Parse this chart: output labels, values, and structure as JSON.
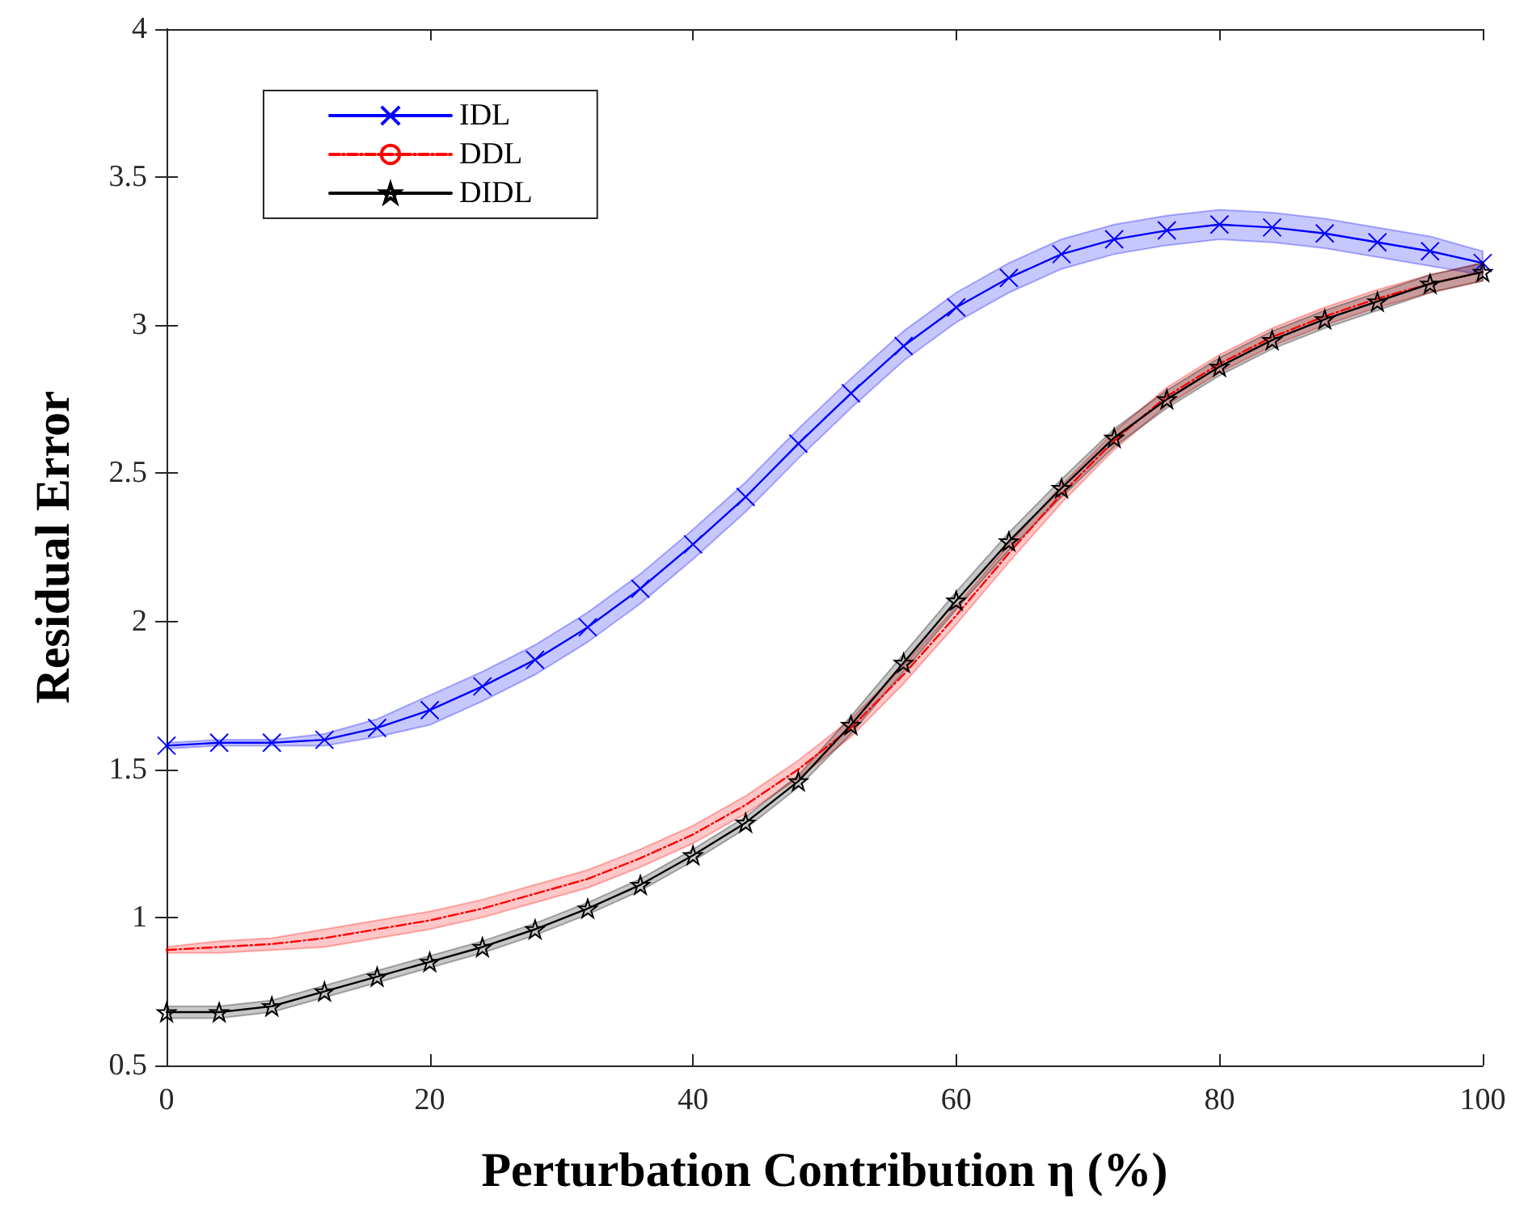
{
  "chart_data": {
    "type": "line",
    "xlabel": "Perturbation Contribution η (%)",
    "ylabel": "Residual Error",
    "x": [
      0,
      4,
      8,
      12,
      16,
      20,
      24,
      28,
      32,
      36,
      40,
      44,
      48,
      52,
      56,
      60,
      64,
      68,
      72,
      76,
      80,
      84,
      88,
      92,
      96,
      100
    ],
    "xlim": [
      0,
      100
    ],
    "xticks": [
      0,
      20,
      40,
      60,
      80,
      100
    ],
    "ylim": [
      0.5,
      4
    ],
    "yticks": [
      0.5,
      1,
      1.5,
      2,
      2.5,
      3,
      3.5,
      4
    ],
    "grid": false,
    "legend": "top left",
    "series": [
      {
        "name": "IDL",
        "color": "#0000ff",
        "marker": "cross",
        "line_style": "solid",
        "values": [
          1.58,
          1.59,
          1.59,
          1.6,
          1.64,
          1.7,
          1.78,
          1.87,
          1.98,
          2.11,
          2.26,
          2.42,
          2.6,
          2.77,
          2.93,
          3.06,
          3.16,
          3.24,
          3.29,
          3.32,
          3.34,
          3.33,
          3.31,
          3.28,
          3.25,
          3.21
        ],
        "lower": [
          1.57,
          1.58,
          1.58,
          1.58,
          1.61,
          1.65,
          1.73,
          1.82,
          1.93,
          2.06,
          2.21,
          2.37,
          2.55,
          2.72,
          2.88,
          3.01,
          3.11,
          3.19,
          3.24,
          3.27,
          3.29,
          3.28,
          3.26,
          3.23,
          3.2,
          3.17
        ],
        "upper": [
          1.59,
          1.6,
          1.6,
          1.62,
          1.67,
          1.75,
          1.83,
          1.92,
          2.03,
          2.16,
          2.31,
          2.47,
          2.65,
          2.82,
          2.98,
          3.11,
          3.21,
          3.29,
          3.34,
          3.37,
          3.39,
          3.38,
          3.36,
          3.33,
          3.3,
          3.25
        ]
      },
      {
        "name": "DDL",
        "color": "#ff0000",
        "marker": "none",
        "line_style": "dashed",
        "values": [
          0.89,
          0.9,
          0.91,
          0.93,
          0.96,
          0.99,
          1.03,
          1.08,
          1.13,
          1.2,
          1.28,
          1.38,
          1.5,
          1.64,
          1.82,
          2.02,
          2.23,
          2.43,
          2.61,
          2.76,
          2.87,
          2.96,
          3.03,
          3.09,
          3.14,
          3.18
        ],
        "lower": [
          0.88,
          0.88,
          0.89,
          0.9,
          0.93,
          0.96,
          1,
          1.05,
          1.1,
          1.17,
          1.25,
          1.35,
          1.47,
          1.61,
          1.79,
          1.99,
          2.2,
          2.4,
          2.58,
          2.73,
          2.84,
          2.93,
          3,
          3.06,
          3.11,
          3.15
        ],
        "upper": [
          0.9,
          0.92,
          0.93,
          0.96,
          0.99,
          1.02,
          1.06,
          1.11,
          1.16,
          1.23,
          1.31,
          1.41,
          1.53,
          1.67,
          1.85,
          2.05,
          2.26,
          2.46,
          2.64,
          2.79,
          2.9,
          2.99,
          3.06,
          3.12,
          3.17,
          3.21
        ]
      },
      {
        "name": "DIDL",
        "color": "#000000",
        "marker": "star",
        "line_style": "solid",
        "values": [
          0.68,
          0.68,
          0.7,
          0.75,
          0.8,
          0.85,
          0.9,
          0.96,
          1.03,
          1.11,
          1.21,
          1.32,
          1.46,
          1.65,
          1.86,
          2.07,
          2.27,
          2.45,
          2.62,
          2.75,
          2.86,
          2.95,
          3.02,
          3.08,
          3.14,
          3.18
        ],
        "lower": [
          0.66,
          0.66,
          0.68,
          0.73,
          0.78,
          0.83,
          0.88,
          0.94,
          1.01,
          1.09,
          1.19,
          1.3,
          1.44,
          1.62,
          1.83,
          2.04,
          2.24,
          2.42,
          2.59,
          2.72,
          2.83,
          2.92,
          2.99,
          3.05,
          3.11,
          3.15
        ],
        "upper": [
          0.7,
          0.7,
          0.72,
          0.77,
          0.82,
          0.87,
          0.92,
          0.98,
          1.05,
          1.13,
          1.23,
          1.34,
          1.48,
          1.68,
          1.89,
          2.1,
          2.3,
          2.48,
          2.65,
          2.78,
          2.89,
          2.98,
          3.05,
          3.11,
          3.17,
          3.21
        ]
      }
    ]
  }
}
